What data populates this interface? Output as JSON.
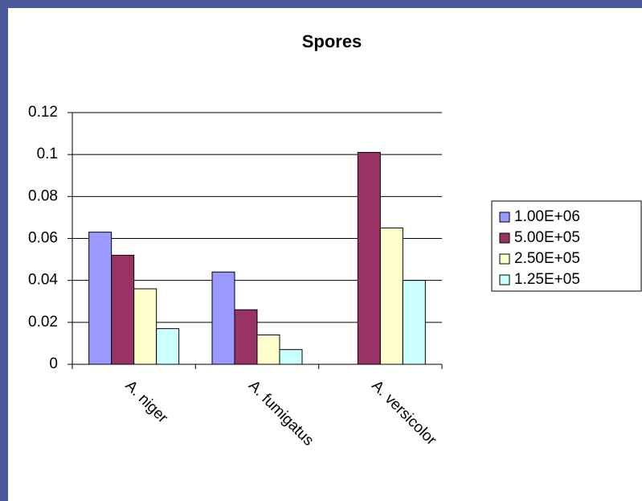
{
  "chart_data": {
    "type": "bar",
    "title": "Spores",
    "categories": [
      "A. niger",
      "A. fumigatus",
      "A. versicolor"
    ],
    "series": [
      {
        "name": "1.00E+06",
        "color": "#9999ff",
        "values": [
          0.063,
          0.044,
          null
        ]
      },
      {
        "name": "5.00E+05",
        "color": "#993366",
        "values": [
          0.052,
          0.026,
          0.101
        ]
      },
      {
        "name": "2.50E+05",
        "color": "#ffffcc",
        "values": [
          0.036,
          0.014,
          0.065
        ]
      },
      {
        "name": "1.25E+05",
        "color": "#ccffff",
        "values": [
          0.017,
          0.007,
          0.04
        ]
      }
    ],
    "ylim": [
      0,
      0.12
    ],
    "yticks": [
      0,
      0.02,
      0.04,
      0.06,
      0.08,
      0.1,
      0.12
    ],
    "grid": true,
    "legend": "right"
  }
}
